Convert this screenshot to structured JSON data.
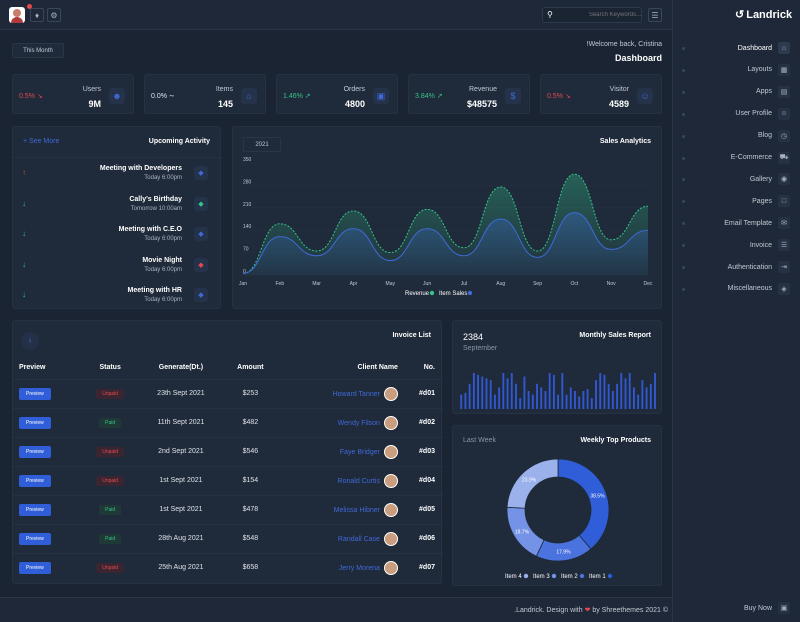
{
  "brand": {
    "name": "Landrick"
  },
  "search": {
    "placeholder": "Search Keywords..."
  },
  "header": {
    "welcome": "!Welcome back, Cristina",
    "title": "Dashboard",
    "period": "This Month"
  },
  "stats": [
    {
      "label": "Users",
      "value": "9M",
      "change": "0.5%",
      "trend": "down",
      "icon": "users-icon"
    },
    {
      "label": "Items",
      "value": "145",
      "change": "0.0%",
      "trend": "flat",
      "icon": "store-icon"
    },
    {
      "label": "Orders",
      "value": "4800",
      "change": "1.46%",
      "trend": "up",
      "icon": "bag-icon"
    },
    {
      "label": "Revenue",
      "value": "$48575",
      "change": "3.84%",
      "trend": "up",
      "icon": "dollar-icon"
    },
    {
      "label": "Visitor",
      "value": "4589",
      "change": "0.5%",
      "trend": "down",
      "icon": "user-circle-icon"
    }
  ],
  "activity": {
    "title": "Upcoming Activity",
    "see_more": "+ See More",
    "items": [
      {
        "name": "Meeting with Developers",
        "time": "Today 6:00pm",
        "dir": "up",
        "color": "#e5484d",
        "icon_color": "#3f6ad8"
      },
      {
        "name": "Cally's Birthday",
        "time": "Tomorrow 10:00am",
        "dir": "down",
        "color": "#35c48a",
        "icon_color": "#35c48a"
      },
      {
        "name": "Meeting with C.E.O",
        "time": "Today 6:00pm",
        "dir": "down",
        "color": "#35c48a",
        "icon_color": "#3f6ad8"
      },
      {
        "name": "Movie Night",
        "time": "Today 6:00pm",
        "dir": "down",
        "color": "#35c48a",
        "icon_color": "#e5484d"
      },
      {
        "name": "Meeting with HR",
        "time": "Today 6:00pm",
        "dir": "down",
        "color": "#35c48a",
        "icon_color": "#3f6ad8"
      }
    ]
  },
  "sales": {
    "title": "Sales Analytics",
    "year": "2021"
  },
  "chart_data": [
    {
      "type": "area",
      "title": "Sales Analytics",
      "categories": [
        "Jan",
        "Feb",
        "Mar",
        "Apr",
        "May",
        "Jun",
        "Jul",
        "Aug",
        "Sep",
        "Oct",
        "Nov",
        "Dec"
      ],
      "yticks": [
        "0",
        "70",
        "140",
        "210",
        "280",
        "350"
      ],
      "ylim": [
        0,
        350
      ],
      "series": [
        {
          "name": "Revenue",
          "color": "#35c48a",
          "values": [
            5,
            160,
            75,
            200,
            70,
            205,
            85,
            275,
            75,
            315,
            110,
            215
          ]
        },
        {
          "name": "Item Sales",
          "color": "#3f6ad8",
          "values": [
            5,
            120,
            60,
            145,
            45,
            145,
            60,
            175,
            55,
            195,
            80,
            140
          ]
        }
      ],
      "legend": "bottom"
    },
    {
      "type": "bar",
      "title": "Monthly Sales Report",
      "values": [
        40,
        45,
        70,
        100,
        95,
        90,
        85,
        80,
        40,
        60,
        100,
        85,
        100,
        70,
        30,
        90,
        50,
        40,
        70,
        60,
        50,
        100,
        95,
        40,
        100,
        40,
        60,
        50,
        35,
        50,
        55,
        30,
        80,
        100,
        95,
        70,
        50,
        70,
        100,
        85,
        100,
        60,
        40,
        80,
        60,
        70,
        100
      ],
      "color": "#3158d0"
    },
    {
      "type": "pie",
      "title": "Weekly Top Products",
      "labels": [
        "Item 1",
        "Item 2",
        "Item 3",
        "Item 4"
      ],
      "values": [
        38.5,
        17.9,
        18.7,
        23.9
      ],
      "colors": [
        "#2f5ed8",
        "#4a73e0",
        "#7493e6",
        "#9ab1ec"
      ],
      "legend": "bottom"
    }
  ],
  "invoice": {
    "title": "Invoice List",
    "headers": [
      "Preview",
      "Status",
      "Generate(Dt.)",
      "Amount",
      "Client Name",
      "No."
    ],
    "preview_label": "Preview",
    "rows": [
      {
        "status": "Unpaid",
        "date": "23th Sept 2021",
        "amount": "$253",
        "client": "Howard Tanner",
        "no": "#d01"
      },
      {
        "status": "Paid",
        "date": "11th Sept 2021",
        "amount": "$482",
        "client": "Wendy Filson",
        "no": "#d02"
      },
      {
        "status": "Unpaid",
        "date": "2nd Sept 2021",
        "amount": "$546",
        "client": "Faye Bridger",
        "no": "#d03"
      },
      {
        "status": "Unpaid",
        "date": "1st Sept 2021",
        "amount": "$154",
        "client": "Ronald Curtis",
        "no": "#d04"
      },
      {
        "status": "Paid",
        "date": "1st Sept 2021",
        "amount": "$478",
        "client": "Melissa Hibner",
        "no": "#d05"
      },
      {
        "status": "Paid",
        "date": "28th Aug 2021",
        "amount": "$548",
        "client": "Randall Case",
        "no": "#d06"
      },
      {
        "status": "Unpaid",
        "date": "25th Aug 2021",
        "amount": "$658",
        "client": "Jerry Morena",
        "no": "#d07"
      }
    ]
  },
  "monthly": {
    "title": "Monthly Sales Report",
    "value": "2384",
    "month": "September"
  },
  "weekly": {
    "title": "Weekly Top Products",
    "period": "Last Week"
  },
  "nav": [
    {
      "label": "Dashboard",
      "icon": "home-icon",
      "active": true
    },
    {
      "label": "Layouts",
      "icon": "layout-icon"
    },
    {
      "label": "Apps",
      "icon": "apps-icon"
    },
    {
      "label": "User Profile",
      "icon": "user-icon"
    },
    {
      "label": "Blog",
      "icon": "clock-icon"
    },
    {
      "label": "E-Commerce",
      "icon": "cart-icon"
    },
    {
      "label": "Gallery",
      "icon": "camera-icon"
    },
    {
      "label": "Pages",
      "icon": "file-icon"
    },
    {
      "label": "Email Template",
      "icon": "mail-icon"
    },
    {
      "label": "Invoice",
      "icon": "invoice-icon"
    },
    {
      "label": "Authentication",
      "icon": "login-icon"
    },
    {
      "label": "Miscellaneous",
      "icon": "layers-icon"
    }
  ],
  "footer": {
    "text_pre": ".Landrick. Design with",
    "text_post": "by Shreethemes 2021 ©",
    "buy": "Buy Now"
  }
}
